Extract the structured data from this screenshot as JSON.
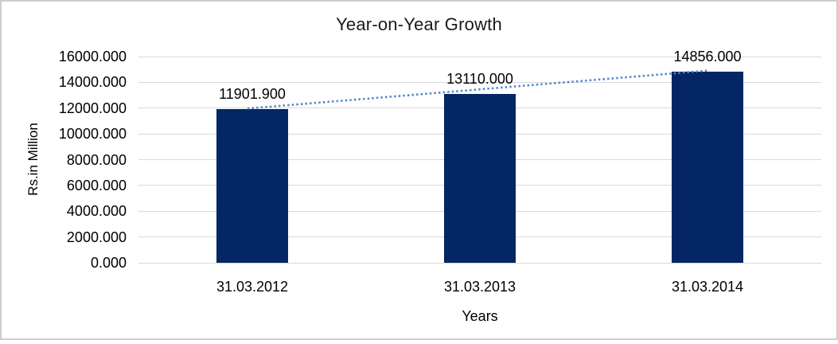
{
  "frame": {
    "background": "#ffffff",
    "border_color": "#cdcdcd"
  },
  "chart_data": {
    "type": "bar",
    "title": "Year-on-Year Growth",
    "xlabel": "Years",
    "ylabel": "Rs.in Million",
    "categories": [
      "31.03.2012",
      "31.03.2013",
      "31.03.2014"
    ],
    "values": [
      11901.9,
      13110.0,
      14856.0
    ],
    "data_labels": [
      "11901.900",
      "13110.000",
      "14856.000"
    ],
    "ylim": [
      0,
      16000
    ],
    "ytick_step": 2000,
    "ytick_labels": [
      "16000.000",
      "14000.000",
      "12000.000",
      "10000.000",
      "8000.000",
      "6000.000",
      "4000.000",
      "2000.000",
      "0.000"
    ],
    "grid": true,
    "legend_position": "none",
    "bar_color": "#052664",
    "gridline_color": "#d9d9d9",
    "trendline": {
      "type": "linear",
      "style": "dotted",
      "color": "#4e86c8"
    }
  }
}
